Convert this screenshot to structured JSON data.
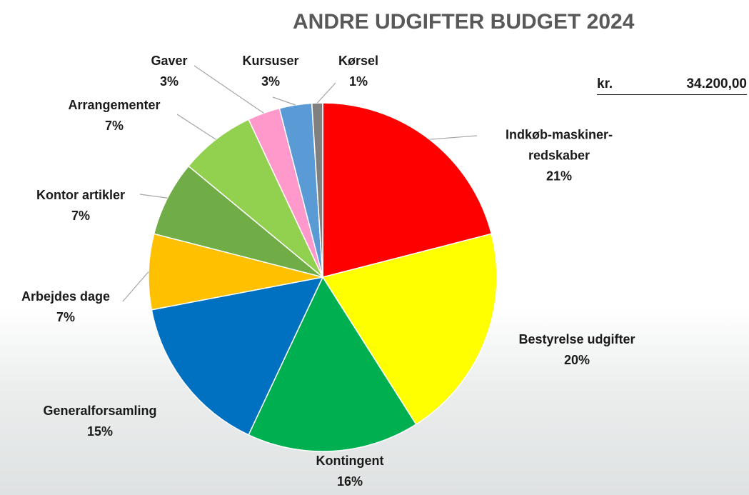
{
  "chart_data": {
    "type": "pie",
    "title": "ANDRE UDGIFTER BUDGET 2024",
    "categories": [
      "Indkøb-maskiner-redskaber",
      "Bestyrelse udgifter",
      "Kontingent",
      "Generalforsamling",
      "Arbejdes dage",
      "Kontor artikler",
      "Arrangementer",
      "Gaver",
      "Kursuser",
      "Kørsel"
    ],
    "values": [
      21,
      20,
      16,
      15,
      7,
      7,
      7,
      3,
      3,
      1
    ],
    "value_labels": [
      "21%",
      "20%",
      "16%",
      "15%",
      "7%",
      "7%",
      "7%",
      "3%",
      "3%",
      "1%"
    ],
    "colors": [
      "#ff0000",
      "#ffff00",
      "#00b050",
      "#0070c0",
      "#ffc000",
      "#70ad47",
      "#92d050",
      "#ff99cc",
      "#5b9bd5",
      "#808080"
    ]
  },
  "summary": {
    "currency": "kr.",
    "amount": "34.200,00"
  }
}
